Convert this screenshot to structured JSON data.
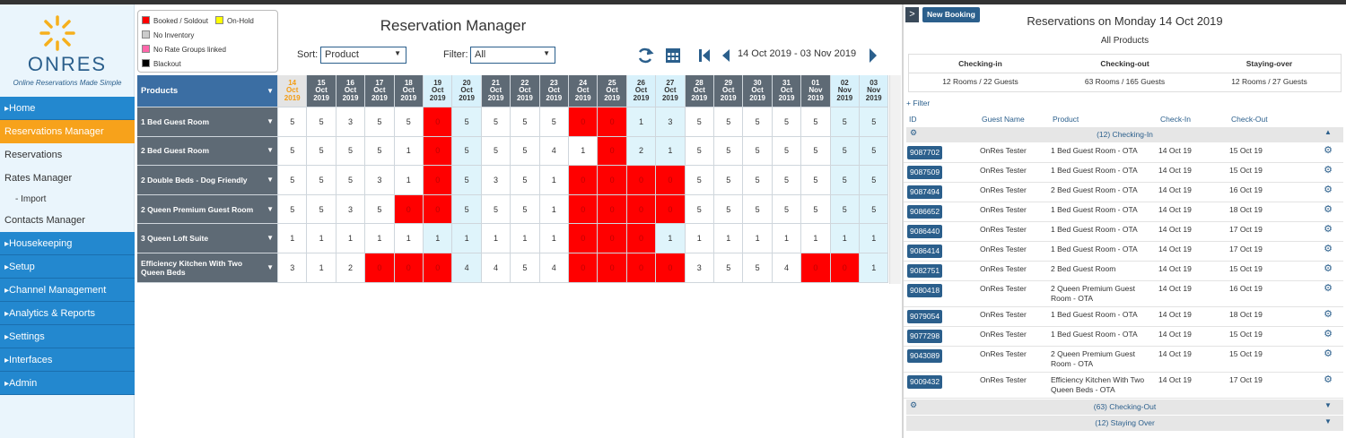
{
  "sidebar": {
    "logo": "ONRES",
    "tagline": "Online Reservations Made Simple",
    "nav": [
      {
        "label": "Home",
        "style": "section"
      },
      {
        "label": "Reservations Manager",
        "style": "active"
      },
      {
        "label": "Reservations",
        "style": "link"
      },
      {
        "label": "Rates Manager",
        "style": "link"
      },
      {
        "label": "- Import",
        "style": "sub"
      },
      {
        "label": "Contacts Manager",
        "style": "link"
      },
      {
        "label": "Housekeeping",
        "style": "section"
      },
      {
        "label": "Setup",
        "style": "section"
      },
      {
        "label": "Channel Management",
        "style": "section"
      },
      {
        "label": "Analytics & Reports",
        "style": "section"
      },
      {
        "label": "Settings",
        "style": "section"
      },
      {
        "label": "Interfaces",
        "style": "section"
      },
      {
        "label": "Admin",
        "style": "section"
      }
    ]
  },
  "legend": [
    {
      "label": "Booked / Soldout",
      "color": "#ff0000"
    },
    {
      "label": "On-Hold",
      "color": "#ffff00"
    },
    {
      "label": "No Inventory",
      "color": "#cccccc"
    },
    {
      "label": "No Rate Groups linked",
      "color": "#ff66aa"
    },
    {
      "label": "Blackout",
      "color": "#000000"
    }
  ],
  "toolbar": {
    "title": "Reservation Manager",
    "sort_label": "Sort:",
    "sort_value": "Product",
    "filter_label": "Filter:",
    "filter_value": "All",
    "date_range": "14 Oct 2019 - 03 Nov 2019"
  },
  "grid": {
    "header": "Products",
    "soldout_color": "#ff0000",
    "dates": [
      {
        "day": "14",
        "month": "Oct",
        "year": "2019"
      },
      {
        "day": "15",
        "month": "Oct",
        "year": "2019"
      },
      {
        "day": "16",
        "month": "Oct",
        "year": "2019"
      },
      {
        "day": "17",
        "month": "Oct",
        "year": "2019"
      },
      {
        "day": "18",
        "month": "Oct",
        "year": "2019"
      },
      {
        "day": "19",
        "month": "Oct",
        "year": "2019"
      },
      {
        "day": "20",
        "month": "Oct",
        "year": "2019"
      },
      {
        "day": "21",
        "month": "Oct",
        "year": "2019"
      },
      {
        "day": "22",
        "month": "Oct",
        "year": "2019"
      },
      {
        "day": "23",
        "month": "Oct",
        "year": "2019"
      },
      {
        "day": "24",
        "month": "Oct",
        "year": "2019"
      },
      {
        "day": "25",
        "month": "Oct",
        "year": "2019"
      },
      {
        "day": "26",
        "month": "Oct",
        "year": "2019"
      },
      {
        "day": "27",
        "month": "Oct",
        "year": "2019"
      },
      {
        "day": "28",
        "month": "Oct",
        "year": "2019"
      },
      {
        "day": "29",
        "month": "Oct",
        "year": "2019"
      },
      {
        "day": "30",
        "month": "Oct",
        "year": "2019"
      },
      {
        "day": "31",
        "month": "Oct",
        "year": "2019"
      },
      {
        "day": "01",
        "month": "Nov",
        "year": "2019"
      },
      {
        "day": "02",
        "month": "Nov",
        "year": "2019"
      },
      {
        "day": "03",
        "month": "Nov",
        "year": "2019"
      }
    ],
    "rows": [
      {
        "product": "1 Bed Guest Room",
        "values": [
          5,
          5,
          3,
          5,
          5,
          0,
          5,
          5,
          5,
          5,
          0,
          0,
          1,
          3,
          5,
          5,
          5,
          5,
          5,
          5,
          5
        ]
      },
      {
        "product": "2 Bed Guest Room",
        "values": [
          5,
          5,
          5,
          5,
          1,
          0,
          5,
          5,
          5,
          4,
          1,
          0,
          2,
          1,
          5,
          5,
          5,
          5,
          5,
          5,
          5
        ]
      },
      {
        "product": "2 Double Beds - Dog Friendly",
        "values": [
          5,
          5,
          5,
          3,
          1,
          0,
          5,
          3,
          5,
          1,
          0,
          0,
          0,
          0,
          5,
          5,
          5,
          5,
          5,
          5,
          5
        ]
      },
      {
        "product": "2 Queen Premium Guest Room",
        "values": [
          5,
          5,
          3,
          5,
          0,
          0,
          5,
          5,
          5,
          1,
          0,
          0,
          0,
          0,
          5,
          5,
          5,
          5,
          5,
          5,
          5
        ]
      },
      {
        "product": "3 Queen Loft Suite",
        "values": [
          1,
          1,
          1,
          1,
          1,
          1,
          1,
          1,
          1,
          1,
          0,
          0,
          0,
          1,
          1,
          1,
          1,
          1,
          1,
          1,
          1
        ]
      },
      {
        "product": "Efficiency Kitchen With Two Queen Beds",
        "values": [
          3,
          1,
          2,
          0,
          0,
          0,
          4,
          4,
          5,
          4,
          0,
          0,
          0,
          0,
          3,
          5,
          5,
          4,
          0,
          0,
          1
        ]
      }
    ]
  },
  "panel": {
    "button": "New Booking",
    "title": "Reservations on Monday 14 Oct 2019",
    "subtitle": "All Products",
    "summary": [
      {
        "label": "Checking-in",
        "value": "12 Rooms / 22 Guests"
      },
      {
        "label": "Checking-out",
        "value": "63 Rooms / 165 Guests"
      },
      {
        "label": "Staying-over",
        "value": "12 Rooms / 27 Guests"
      }
    ],
    "filter": "+ Filter",
    "columns": [
      "ID",
      "Guest Name",
      "Product",
      "Check-In",
      "Check-Out"
    ],
    "group": "(12) Checking-In",
    "rows": [
      [
        "9087702",
        "OnRes Tester",
        "1 Bed Guest Room - OTA",
        "14 Oct 19",
        "15 Oct 19"
      ],
      [
        "9087509",
        "OnRes Tester",
        "1 Bed Guest Room - OTA",
        "14 Oct 19",
        "15 Oct 19"
      ],
      [
        "9087494",
        "OnRes Tester",
        "2 Bed Guest Room - OTA",
        "14 Oct 19",
        "16 Oct 19"
      ],
      [
        "9086652",
        "OnRes Tester",
        "1 Bed Guest Room - OTA",
        "14 Oct 19",
        "18 Oct 19"
      ],
      [
        "9086440",
        "OnRes Tester",
        "1 Bed Guest Room - OTA",
        "14 Oct 19",
        "17 Oct 19"
      ],
      [
        "9086414",
        "OnRes Tester",
        "1 Bed Guest Room - OTA",
        "14 Oct 19",
        "17 Oct 19"
      ],
      [
        "9082751",
        "OnRes Tester",
        "2 Bed Guest Room",
        "14 Oct 19",
        "15 Oct 19"
      ],
      [
        "9080418",
        "OnRes Tester",
        "2 Queen Premium Guest Room - OTA",
        "14 Oct 19",
        "16 Oct 19"
      ],
      [
        "9079054",
        "OnRes Tester",
        "1 Bed Guest Room - OTA",
        "14 Oct 19",
        "18 Oct 19"
      ],
      [
        "9077298",
        "OnRes Tester",
        "1 Bed Guest Room - OTA",
        "14 Oct 19",
        "15 Oct 19"
      ],
      [
        "9043089",
        "OnRes Tester",
        "2 Queen Premium Guest Room - OTA",
        "14 Oct 19",
        "15 Oct 19"
      ],
      [
        "9009432",
        "OnRes Tester",
        "Efficiency Kitchen With Two Queen Beds - OTA",
        "14 Oct 19",
        "17 Oct 19"
      ]
    ],
    "groups_after": [
      "(63) Checking-Out",
      "(12) Staying Over"
    ]
  }
}
